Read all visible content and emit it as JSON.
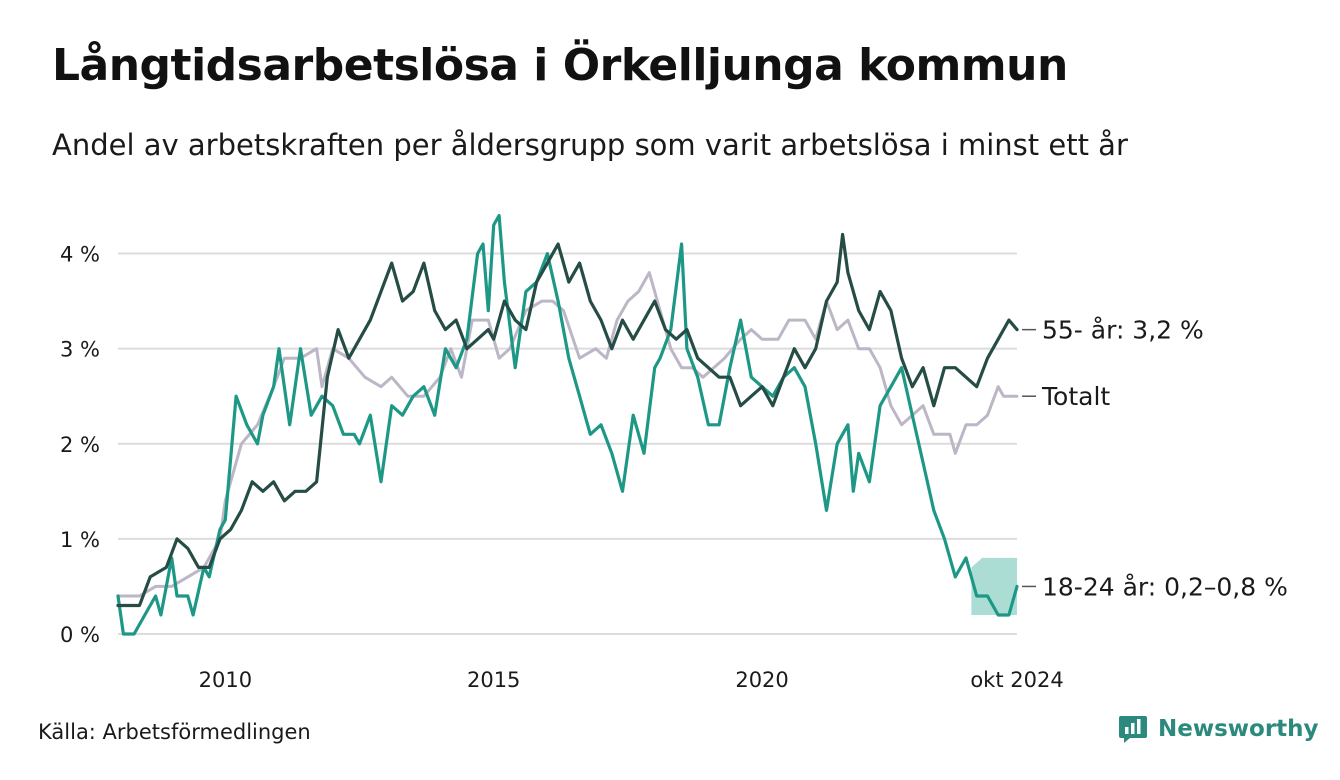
{
  "title": "Långtidsarbetslösa i Örkelljunga kommun",
  "subtitle": "Andel av arbetskraften per åldersgrupp som varit arbetslösa i minst ett år",
  "source": "Källa: Arbetsförmedlingen",
  "brand": "Newsworthy",
  "colors": {
    "series_55": "#254c45",
    "series_total": "#bcb6c6",
    "series_18_24": "#1e9886",
    "band_18_24": "#9ed7cc",
    "grid": "#dcdcdc",
    "brand": "#2b8a7d"
  },
  "chart_data": {
    "type": "line",
    "y_ticks": [
      0,
      1,
      2,
      3,
      4
    ],
    "y_tick_labels": [
      "0 %",
      "1 %",
      "2 %",
      "3 %",
      "4 %"
    ],
    "ylim": [
      0,
      4.5
    ],
    "x_ticks": [
      {
        "label": "2010",
        "year": 2010.0
      },
      {
        "label": "2015",
        "year": 2015.0
      },
      {
        "label": "2020",
        "year": 2020.0
      },
      {
        "label": "okt 2024",
        "year": 2024.75
      }
    ],
    "xlim": [
      2008.0,
      2024.75
    ],
    "grid": true,
    "series": [
      {
        "key": "total",
        "end_label": "Totalt",
        "points": [
          [
            2008.0,
            0.4
          ],
          [
            2008.4,
            0.4
          ],
          [
            2008.7,
            0.5
          ],
          [
            2009.0,
            0.5
          ],
          [
            2009.3,
            0.6
          ],
          [
            2009.6,
            0.7
          ],
          [
            2009.9,
            1.0
          ],
          [
            2010.0,
            1.4
          ],
          [
            2010.3,
            2.0
          ],
          [
            2010.6,
            2.2
          ],
          [
            2010.9,
            2.6
          ],
          [
            2011.1,
            2.9
          ],
          [
            2011.4,
            2.9
          ],
          [
            2011.7,
            3.0
          ],
          [
            2011.8,
            2.6
          ],
          [
            2012.0,
            3.0
          ],
          [
            2012.3,
            2.9
          ],
          [
            2012.6,
            2.7
          ],
          [
            2012.9,
            2.6
          ],
          [
            2013.1,
            2.7
          ],
          [
            2013.4,
            2.5
          ],
          [
            2013.7,
            2.5
          ],
          [
            2014.0,
            2.7
          ],
          [
            2014.2,
            3.0
          ],
          [
            2014.4,
            2.7
          ],
          [
            2014.6,
            3.3
          ],
          [
            2014.9,
            3.3
          ],
          [
            2015.1,
            2.9
          ],
          [
            2015.3,
            3.0
          ],
          [
            2015.6,
            3.4
          ],
          [
            2015.9,
            3.5
          ],
          [
            2016.1,
            3.5
          ],
          [
            2016.3,
            3.4
          ],
          [
            2016.6,
            2.9
          ],
          [
            2016.9,
            3.0
          ],
          [
            2017.1,
            2.9
          ],
          [
            2017.3,
            3.3
          ],
          [
            2017.5,
            3.5
          ],
          [
            2017.7,
            3.6
          ],
          [
            2017.9,
            3.8
          ],
          [
            2018.1,
            3.4
          ],
          [
            2018.3,
            3.0
          ],
          [
            2018.5,
            2.8
          ],
          [
            2018.7,
            2.8
          ],
          [
            2018.9,
            2.7
          ],
          [
            2019.1,
            2.8
          ],
          [
            2019.3,
            2.9
          ],
          [
            2019.6,
            3.1
          ],
          [
            2019.8,
            3.2
          ],
          [
            2020.0,
            3.1
          ],
          [
            2020.3,
            3.1
          ],
          [
            2020.5,
            3.3
          ],
          [
            2020.8,
            3.3
          ],
          [
            2021.0,
            3.1
          ],
          [
            2021.2,
            3.5
          ],
          [
            2021.4,
            3.2
          ],
          [
            2021.6,
            3.3
          ],
          [
            2021.8,
            3.0
          ],
          [
            2022.0,
            3.0
          ],
          [
            2022.2,
            2.8
          ],
          [
            2022.4,
            2.4
          ],
          [
            2022.6,
            2.2
          ],
          [
            2022.8,
            2.3
          ],
          [
            2023.0,
            2.4
          ],
          [
            2023.2,
            2.1
          ],
          [
            2023.5,
            2.1
          ],
          [
            2023.6,
            1.9
          ],
          [
            2023.8,
            2.2
          ],
          [
            2024.0,
            2.2
          ],
          [
            2024.2,
            2.3
          ],
          [
            2024.4,
            2.6
          ],
          [
            2024.5,
            2.5
          ],
          [
            2024.75,
            2.5
          ]
        ]
      },
      {
        "key": "age18_24",
        "end_label": "18-24 år: 0,2–0,8 %",
        "points": [
          [
            2008.0,
            0.4
          ],
          [
            2008.1,
            0.0
          ],
          [
            2008.3,
            0.0
          ],
          [
            2008.5,
            0.2
          ],
          [
            2008.7,
            0.4
          ],
          [
            2008.8,
            0.2
          ],
          [
            2009.0,
            0.8
          ],
          [
            2009.1,
            0.4
          ],
          [
            2009.3,
            0.4
          ],
          [
            2009.4,
            0.2
          ],
          [
            2009.6,
            0.7
          ],
          [
            2009.7,
            0.6
          ],
          [
            2009.9,
            1.1
          ],
          [
            2010.0,
            1.2
          ],
          [
            2010.2,
            2.5
          ],
          [
            2010.4,
            2.2
          ],
          [
            2010.6,
            2.0
          ],
          [
            2010.7,
            2.3
          ],
          [
            2010.9,
            2.6
          ],
          [
            2011.0,
            3.0
          ],
          [
            2011.2,
            2.2
          ],
          [
            2011.4,
            3.0
          ],
          [
            2011.6,
            2.3
          ],
          [
            2011.8,
            2.5
          ],
          [
            2012.0,
            2.4
          ],
          [
            2012.2,
            2.1
          ],
          [
            2012.4,
            2.1
          ],
          [
            2012.5,
            2.0
          ],
          [
            2012.7,
            2.3
          ],
          [
            2012.9,
            1.6
          ],
          [
            2013.1,
            2.4
          ],
          [
            2013.3,
            2.3
          ],
          [
            2013.5,
            2.5
          ],
          [
            2013.7,
            2.6
          ],
          [
            2013.9,
            2.3
          ],
          [
            2014.1,
            3.0
          ],
          [
            2014.3,
            2.8
          ],
          [
            2014.5,
            3.1
          ],
          [
            2014.7,
            4.0
          ],
          [
            2014.8,
            4.1
          ],
          [
            2014.9,
            3.4
          ],
          [
            2015.0,
            4.3
          ],
          [
            2015.1,
            4.4
          ],
          [
            2015.2,
            3.7
          ],
          [
            2015.4,
            2.8
          ],
          [
            2015.6,
            3.6
          ],
          [
            2015.8,
            3.7
          ],
          [
            2016.0,
            4.0
          ],
          [
            2016.2,
            3.5
          ],
          [
            2016.4,
            2.9
          ],
          [
            2016.6,
            2.5
          ],
          [
            2016.8,
            2.1
          ],
          [
            2017.0,
            2.2
          ],
          [
            2017.2,
            1.9
          ],
          [
            2017.4,
            1.5
          ],
          [
            2017.6,
            2.3
          ],
          [
            2017.8,
            1.9
          ],
          [
            2018.0,
            2.8
          ],
          [
            2018.1,
            2.9
          ],
          [
            2018.3,
            3.2
          ],
          [
            2018.5,
            4.1
          ],
          [
            2018.6,
            3.0
          ],
          [
            2018.8,
            2.7
          ],
          [
            2019.0,
            2.2
          ],
          [
            2019.2,
            2.2
          ],
          [
            2019.4,
            2.8
          ],
          [
            2019.6,
            3.3
          ],
          [
            2019.8,
            2.7
          ],
          [
            2020.0,
            2.6
          ],
          [
            2020.2,
            2.5
          ],
          [
            2020.4,
            2.7
          ],
          [
            2020.6,
            2.8
          ],
          [
            2020.8,
            2.6
          ],
          [
            2021.0,
            2.0
          ],
          [
            2021.2,
            1.3
          ],
          [
            2021.4,
            2.0
          ],
          [
            2021.6,
            2.2
          ],
          [
            2021.7,
            1.5
          ],
          [
            2021.8,
            1.9
          ],
          [
            2022.0,
            1.6
          ],
          [
            2022.2,
            2.4
          ],
          [
            2022.4,
            2.6
          ],
          [
            2022.6,
            2.8
          ],
          [
            2022.8,
            2.3
          ],
          [
            2023.0,
            1.8
          ],
          [
            2023.2,
            1.3
          ],
          [
            2023.4,
            1.0
          ],
          [
            2023.6,
            0.6
          ],
          [
            2023.8,
            0.8
          ],
          [
            2024.0,
            0.4
          ],
          [
            2024.2,
            0.4
          ],
          [
            2024.4,
            0.2
          ],
          [
            2024.6,
            0.2
          ],
          [
            2024.75,
            0.5
          ]
        ]
      },
      {
        "key": "age55",
        "end_label": "55- år: 3,2 %",
        "points": [
          [
            2008.0,
            0.3
          ],
          [
            2008.4,
            0.3
          ],
          [
            2008.6,
            0.6
          ],
          [
            2008.9,
            0.7
          ],
          [
            2009.1,
            1.0
          ],
          [
            2009.3,
            0.9
          ],
          [
            2009.5,
            0.7
          ],
          [
            2009.7,
            0.7
          ],
          [
            2009.9,
            1.0
          ],
          [
            2010.1,
            1.1
          ],
          [
            2010.3,
            1.3
          ],
          [
            2010.5,
            1.6
          ],
          [
            2010.7,
            1.5
          ],
          [
            2010.9,
            1.6
          ],
          [
            2011.1,
            1.4
          ],
          [
            2011.3,
            1.5
          ],
          [
            2011.5,
            1.5
          ],
          [
            2011.7,
            1.6
          ],
          [
            2011.9,
            2.7
          ],
          [
            2012.1,
            3.2
          ],
          [
            2012.3,
            2.9
          ],
          [
            2012.5,
            3.1
          ],
          [
            2012.7,
            3.3
          ],
          [
            2012.9,
            3.6
          ],
          [
            2013.1,
            3.9
          ],
          [
            2013.3,
            3.5
          ],
          [
            2013.5,
            3.6
          ],
          [
            2013.7,
            3.9
          ],
          [
            2013.9,
            3.4
          ],
          [
            2014.1,
            3.2
          ],
          [
            2014.3,
            3.3
          ],
          [
            2014.5,
            3.0
          ],
          [
            2014.7,
            3.1
          ],
          [
            2014.9,
            3.2
          ],
          [
            2015.0,
            3.1
          ],
          [
            2015.2,
            3.5
          ],
          [
            2015.4,
            3.3
          ],
          [
            2015.6,
            3.2
          ],
          [
            2015.8,
            3.7
          ],
          [
            2016.0,
            3.9
          ],
          [
            2016.2,
            4.1
          ],
          [
            2016.4,
            3.7
          ],
          [
            2016.6,
            3.9
          ],
          [
            2016.8,
            3.5
          ],
          [
            2017.0,
            3.3
          ],
          [
            2017.2,
            3.0
          ],
          [
            2017.4,
            3.3
          ],
          [
            2017.6,
            3.1
          ],
          [
            2017.8,
            3.3
          ],
          [
            2018.0,
            3.5
          ],
          [
            2018.2,
            3.2
          ],
          [
            2018.4,
            3.1
          ],
          [
            2018.6,
            3.2
          ],
          [
            2018.8,
            2.9
          ],
          [
            2019.0,
            2.8
          ],
          [
            2019.2,
            2.7
          ],
          [
            2019.4,
            2.7
          ],
          [
            2019.6,
            2.4
          ],
          [
            2019.8,
            2.5
          ],
          [
            2020.0,
            2.6
          ],
          [
            2020.2,
            2.4
          ],
          [
            2020.4,
            2.7
          ],
          [
            2020.6,
            3.0
          ],
          [
            2020.8,
            2.8
          ],
          [
            2021.0,
            3.0
          ],
          [
            2021.2,
            3.5
          ],
          [
            2021.4,
            3.7
          ],
          [
            2021.5,
            4.2
          ],
          [
            2021.6,
            3.8
          ],
          [
            2021.8,
            3.4
          ],
          [
            2022.0,
            3.2
          ],
          [
            2022.2,
            3.6
          ],
          [
            2022.4,
            3.4
          ],
          [
            2022.6,
            2.9
          ],
          [
            2022.8,
            2.6
          ],
          [
            2023.0,
            2.8
          ],
          [
            2023.2,
            2.4
          ],
          [
            2023.4,
            2.8
          ],
          [
            2023.6,
            2.8
          ],
          [
            2023.8,
            2.7
          ],
          [
            2024.0,
            2.6
          ],
          [
            2024.2,
            2.9
          ],
          [
            2024.4,
            3.1
          ],
          [
            2024.6,
            3.3
          ],
          [
            2024.75,
            3.2
          ]
        ]
      }
    ],
    "band_18_24": {
      "x": [
        2023.9,
        2024.1,
        2024.3,
        2024.5,
        2024.75
      ],
      "low": [
        0.2,
        0.2,
        0.2,
        0.2,
        0.2
      ],
      "high": [
        0.7,
        0.8,
        0.8,
        0.8,
        0.8
      ]
    }
  }
}
